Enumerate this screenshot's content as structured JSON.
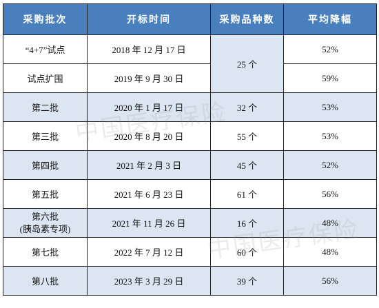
{
  "table": {
    "headers": [
      "采购批次",
      "开标时间",
      "采购品种数",
      "平均降幅"
    ],
    "rows": [
      {
        "batch": "“4+7”试点",
        "batch_line2": "",
        "date": "2018 年 12 月 17 日",
        "count": "25 个",
        "avg_drop": "52%"
      },
      {
        "batch": "试点扩围",
        "batch_line2": "",
        "date": "2019 年 9 月 30 日",
        "count": "",
        "avg_drop": "59%"
      },
      {
        "batch": "第二批",
        "batch_line2": "",
        "date": "2020 年 1 月 17 日",
        "count": "32 个",
        "avg_drop": "53%"
      },
      {
        "batch": "第三批",
        "batch_line2": "",
        "date": "2020 年 8 月 20 日",
        "count": "55 个",
        "avg_drop": "53%"
      },
      {
        "batch": "第四批",
        "batch_line2": "",
        "date": "2021 年 2 月 3 日",
        "count": "45 个",
        "avg_drop": "52%"
      },
      {
        "batch": "第五批",
        "batch_line2": "",
        "date": "2021 年 6 月 23 日",
        "count": "61 个",
        "avg_drop": "56%"
      },
      {
        "batch": "第六批",
        "batch_line2": "(胰岛素专项)",
        "date": "2021 年 11 月 26 日",
        "count": "16 个",
        "avg_drop": "48%"
      },
      {
        "batch": "第七批",
        "batch_line2": "",
        "date": "2022 年 7 月 12 日",
        "count": "60 个",
        "avg_drop": "48%"
      },
      {
        "batch": "第八批",
        "batch_line2": "",
        "date": "2023 年 3 月 29 日",
        "count": "39 个",
        "avg_drop": "56%"
      }
    ]
  },
  "watermark": {
    "text": "中国医疗保险"
  },
  "colors": {
    "header_bg": "#4a7fbd",
    "header_text": "#ffffff",
    "shade_bg": "#dce6f2",
    "border": "#1f1f1f"
  }
}
